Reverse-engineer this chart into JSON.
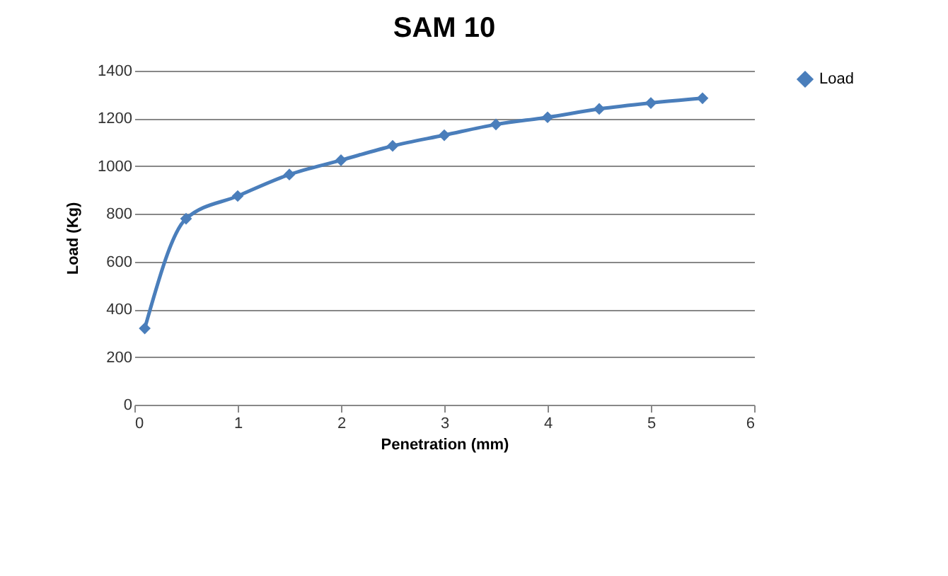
{
  "chart_data": {
    "type": "line",
    "title": "SAM 10",
    "xlabel": "Penetration (mm)",
    "ylabel": "Load (Kg)",
    "x": [
      0.1,
      0.5,
      1,
      1.5,
      2,
      2.5,
      3,
      3.5,
      4,
      4.5,
      5,
      5.5
    ],
    "series": [
      {
        "name": "Load",
        "color": "#4a7ebb",
        "values": [
          320,
          780,
          875,
          965,
          1025,
          1085,
          1130,
          1175,
          1205,
          1240,
          1265,
          1285
        ]
      }
    ],
    "xlim": [
      0,
      6
    ],
    "xticks": [
      0,
      1,
      2,
      3,
      4,
      5,
      6
    ],
    "ylim": [
      0,
      1400
    ],
    "yticks": [
      0,
      200,
      400,
      600,
      800,
      1000,
      1200,
      1400
    ],
    "grid": "y",
    "legend": "right",
    "marker": "diamond",
    "line_style": "solid"
  }
}
